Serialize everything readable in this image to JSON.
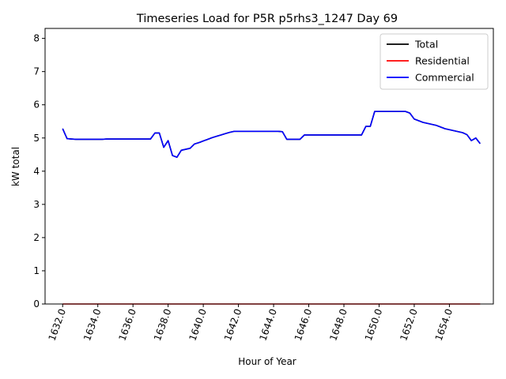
{
  "chart_data": {
    "type": "line",
    "title": "Timeseries Load for P5R p5rhs3_1247  Day 69",
    "xlabel": "Hour of Year",
    "ylabel": "kW total",
    "xlim": [
      1631.0,
      1656.5
    ],
    "ylim": [
      0,
      8.3
    ],
    "xticks": [
      1632,
      1634,
      1636,
      1638,
      1640,
      1642,
      1644,
      1646,
      1648,
      1650,
      1652,
      1654
    ],
    "xtick_labels": [
      "1632.0",
      "1634.0",
      "1636.0",
      "1638.0",
      "1640.0",
      "1642.0",
      "1644.0",
      "1646.0",
      "1648.0",
      "1650.0",
      "1652.0",
      "1654.0"
    ],
    "yticks": [
      0,
      1,
      2,
      3,
      4,
      5,
      6,
      7,
      8
    ],
    "ytick_labels": [
      "0",
      "1",
      "2",
      "3",
      "4",
      "5",
      "6",
      "7",
      "8"
    ],
    "grid": false,
    "legend_position": "top-right",
    "x": [
      1632.0,
      1632.25,
      1632.5,
      1632.75,
      1633.0,
      1633.25,
      1633.5,
      1633.75,
      1634.0,
      1634.25,
      1634.5,
      1634.75,
      1635.0,
      1635.25,
      1635.5,
      1635.75,
      1636.0,
      1636.25,
      1636.5,
      1636.75,
      1637.0,
      1637.25,
      1637.5,
      1637.75,
      1638.0,
      1638.25,
      1638.5,
      1638.75,
      1639.0,
      1639.25,
      1639.5,
      1639.75,
      1640.0,
      1640.25,
      1640.5,
      1640.75,
      1641.0,
      1641.25,
      1641.5,
      1641.75,
      1642.0,
      1642.25,
      1642.5,
      1642.75,
      1643.0,
      1643.25,
      1643.5,
      1643.75,
      1644.0,
      1644.25,
      1644.5,
      1644.75,
      1645.0,
      1645.25,
      1645.5,
      1645.75,
      1646.0,
      1646.25,
      1646.5,
      1646.75,
      1647.0,
      1647.25,
      1647.5,
      1647.75,
      1648.0,
      1648.25,
      1648.5,
      1648.75,
      1649.0,
      1649.25,
      1649.5,
      1649.75,
      1650.0,
      1650.25,
      1650.5,
      1650.75,
      1651.0,
      1651.25,
      1651.5,
      1651.75,
      1652.0,
      1652.25,
      1652.5,
      1652.75,
      1653.0,
      1653.25,
      1653.5,
      1653.75,
      1654.0,
      1654.25,
      1654.5,
      1654.75,
      1655.0,
      1655.25,
      1655.5,
      1655.75
    ],
    "series": [
      {
        "name": "Total",
        "color": "#000000",
        "values": [
          5.28,
          4.98,
          4.97,
          4.96,
          4.96,
          4.96,
          4.96,
          4.96,
          4.96,
          4.96,
          4.97,
          4.97,
          4.97,
          4.97,
          4.97,
          4.97,
          4.97,
          4.97,
          4.97,
          4.97,
          4.97,
          5.15,
          5.15,
          4.72,
          4.92,
          4.47,
          4.42,
          4.63,
          4.66,
          4.69,
          4.82,
          4.86,
          4.91,
          4.96,
          5.01,
          5.05,
          5.09,
          5.13,
          5.17,
          5.2,
          5.2,
          5.2,
          5.2,
          5.2,
          5.2,
          5.2,
          5.2,
          5.2,
          5.2,
          5.2,
          5.19,
          4.96,
          4.96,
          4.96,
          4.96,
          5.09,
          5.09,
          5.09,
          5.09,
          5.09,
          5.09,
          5.09,
          5.09,
          5.09,
          5.09,
          5.09,
          5.09,
          5.09,
          5.09,
          5.35,
          5.35,
          5.8,
          5.8,
          5.8,
          5.8,
          5.8,
          5.8,
          5.8,
          5.8,
          5.75,
          5.57,
          5.52,
          5.47,
          5.44,
          5.41,
          5.38,
          5.33,
          5.28,
          5.25,
          5.22,
          5.19,
          5.16,
          5.1,
          4.92,
          5.0,
          4.83
        ]
      },
      {
        "name": "Residential",
        "color": "#ff0000",
        "values": [
          0,
          0,
          0,
          0,
          0,
          0,
          0,
          0,
          0,
          0,
          0,
          0,
          0,
          0,
          0,
          0,
          0,
          0,
          0,
          0,
          0,
          0,
          0,
          0,
          0,
          0,
          0,
          0,
          0,
          0,
          0,
          0,
          0,
          0,
          0,
          0,
          0,
          0,
          0,
          0,
          0,
          0,
          0,
          0,
          0,
          0,
          0,
          0,
          0,
          0,
          0,
          0,
          0,
          0,
          0,
          0,
          0,
          0,
          0,
          0,
          0,
          0,
          0,
          0,
          0,
          0,
          0,
          0,
          0,
          0,
          0,
          0,
          0,
          0,
          0,
          0,
          0,
          0,
          0,
          0,
          0,
          0,
          0,
          0,
          0,
          0,
          0,
          0,
          0,
          0,
          0,
          0,
          0,
          0,
          0,
          0
        ]
      },
      {
        "name": "Commercial",
        "color": "#0000ff",
        "values": [
          5.28,
          4.98,
          4.97,
          4.96,
          4.96,
          4.96,
          4.96,
          4.96,
          4.96,
          4.96,
          4.97,
          4.97,
          4.97,
          4.97,
          4.97,
          4.97,
          4.97,
          4.97,
          4.97,
          4.97,
          4.97,
          5.15,
          5.15,
          4.72,
          4.92,
          4.47,
          4.42,
          4.63,
          4.66,
          4.69,
          4.82,
          4.86,
          4.91,
          4.96,
          5.01,
          5.05,
          5.09,
          5.13,
          5.17,
          5.2,
          5.2,
          5.2,
          5.2,
          5.2,
          5.2,
          5.2,
          5.2,
          5.2,
          5.2,
          5.2,
          5.19,
          4.96,
          4.96,
          4.96,
          4.96,
          5.09,
          5.09,
          5.09,
          5.09,
          5.09,
          5.09,
          5.09,
          5.09,
          5.09,
          5.09,
          5.09,
          5.09,
          5.09,
          5.09,
          5.35,
          5.35,
          5.8,
          5.8,
          5.8,
          5.8,
          5.8,
          5.8,
          5.8,
          5.8,
          5.75,
          5.57,
          5.52,
          5.47,
          5.44,
          5.41,
          5.38,
          5.33,
          5.28,
          5.25,
          5.22,
          5.19,
          5.16,
          5.1,
          4.92,
          5.0,
          4.83
        ]
      }
    ]
  }
}
